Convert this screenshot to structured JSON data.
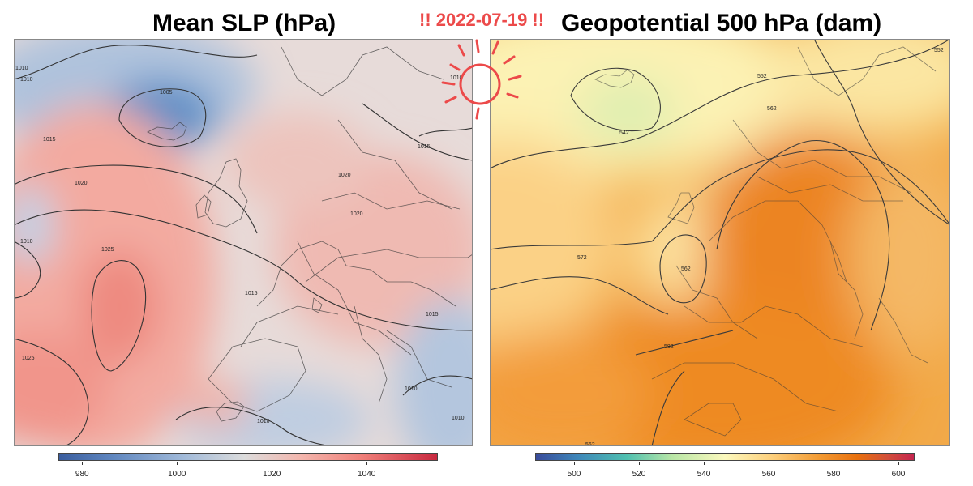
{
  "titles": {
    "left": "Mean SLP (hPa)",
    "date": "!! 2022-07-19 !!",
    "right": "Geopotential 500 hPa (dam)"
  },
  "left_map": {
    "variable": "Mean SLP",
    "unit": "hPa",
    "contour_labels": [
      "1010",
      "1010",
      "1005",
      "1015",
      "1020",
      "1010",
      "1025",
      "1025",
      "1015",
      "1020",
      "1020",
      "1015",
      "1015",
      "1010",
      "1010",
      "1010",
      "1010"
    ],
    "colorbar": {
      "ticks": [
        "980",
        "1000",
        "1020",
        "1040"
      ],
      "range": [
        975,
        1055
      ]
    }
  },
  "right_map": {
    "variable": "Geopotential 500 hPa",
    "unit": "dam",
    "contour_labels": [
      "552",
      "552",
      "562",
      "542",
      "562",
      "572",
      "582",
      "562"
    ],
    "colorbar": {
      "ticks": [
        "500",
        "520",
        "540",
        "560",
        "580",
        "600"
      ],
      "range": [
        488,
        605
      ]
    }
  },
  "decoration": {
    "sun_icon": "sun-icon",
    "accent_color": "#ec4a4a"
  }
}
